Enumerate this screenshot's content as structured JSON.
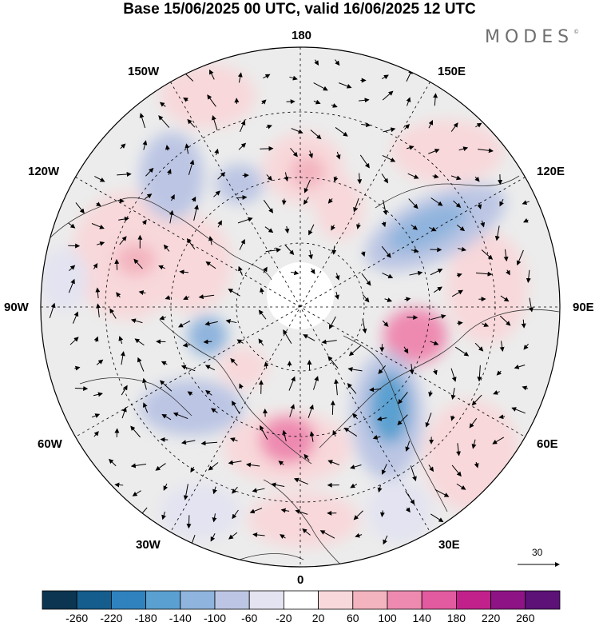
{
  "title": "Base 15/06/2025 00 UTC, valid 16/06/2025 12 UTC",
  "logo": "MODES",
  "logo_mark": "©",
  "longitude_labels": {
    "top": "180",
    "top_left": "150W",
    "top_right": "150E",
    "upper_left": "120W",
    "upper_right": "120E",
    "left": "90W",
    "right": "90E",
    "lower_left": "60W",
    "lower_right": "60E",
    "bottom_left": "30W",
    "bottom_right": "30E",
    "bottom": "0"
  },
  "reference_vector": {
    "label": "30"
  },
  "colorbar": {
    "labels": [
      "-260",
      "-220",
      "-180",
      "-140",
      "-100",
      "-60",
      "-20",
      "20",
      "60",
      "100",
      "140",
      "180",
      "220",
      "260"
    ],
    "colors": [
      "#0b3550",
      "#155d8d",
      "#2f82bd",
      "#5aa0d0",
      "#8fb4dd",
      "#bcc6e4",
      "#e3e3f1",
      "#ffffff",
      "#f8d8da",
      "#f3b3bf",
      "#ee8ab0",
      "#e25aa0",
      "#c2218c",
      "#8e1486",
      "#5c1277"
    ]
  },
  "field_colors": {
    "background_gray": "#ececec",
    "pole_hole": "#ffffff"
  }
}
